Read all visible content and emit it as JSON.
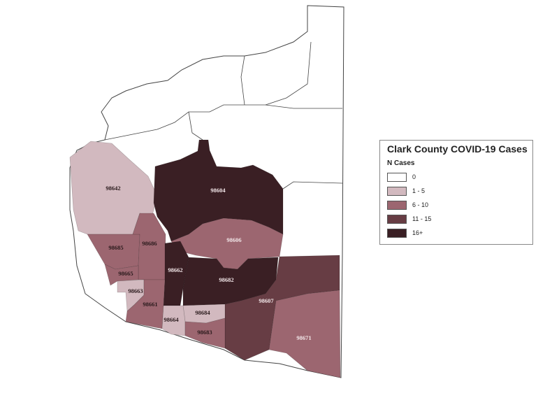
{
  "legend": {
    "title": "Clark County COVID-19 Cases",
    "subtitle": "N Cases",
    "classes": [
      {
        "label": "0",
        "color": "#ffffff"
      },
      {
        "label": "1 - 5",
        "color": "#d2b9bf"
      },
      {
        "label": "6 - 10",
        "color": "#9c6670"
      },
      {
        "label": "11 - 15",
        "color": "#673d44"
      },
      {
        "label": "16+",
        "color": "#3a1f24"
      }
    ]
  },
  "zip_codes": [
    {
      "zip": "98642",
      "class": "1 - 5"
    },
    {
      "zip": "98604",
      "class": "16+"
    },
    {
      "zip": "98606",
      "class": "6 - 10"
    },
    {
      "zip": "98685",
      "class": "6 - 10"
    },
    {
      "zip": "98686",
      "class": "6 - 10"
    },
    {
      "zip": "98665",
      "class": "6 - 10"
    },
    {
      "zip": "98662",
      "class": "16+"
    },
    {
      "zip": "98682",
      "class": "16+"
    },
    {
      "zip": "98663",
      "class": "1 - 5"
    },
    {
      "zip": "98661",
      "class": "6 - 10"
    },
    {
      "zip": "98607",
      "class": "11 - 15"
    },
    {
      "zip": "98684",
      "class": "1 - 5"
    },
    {
      "zip": "98664",
      "class": "1 - 5"
    },
    {
      "zip": "98683",
      "class": "6 - 10"
    },
    {
      "zip": "98671",
      "class": "6 - 10"
    }
  ]
}
